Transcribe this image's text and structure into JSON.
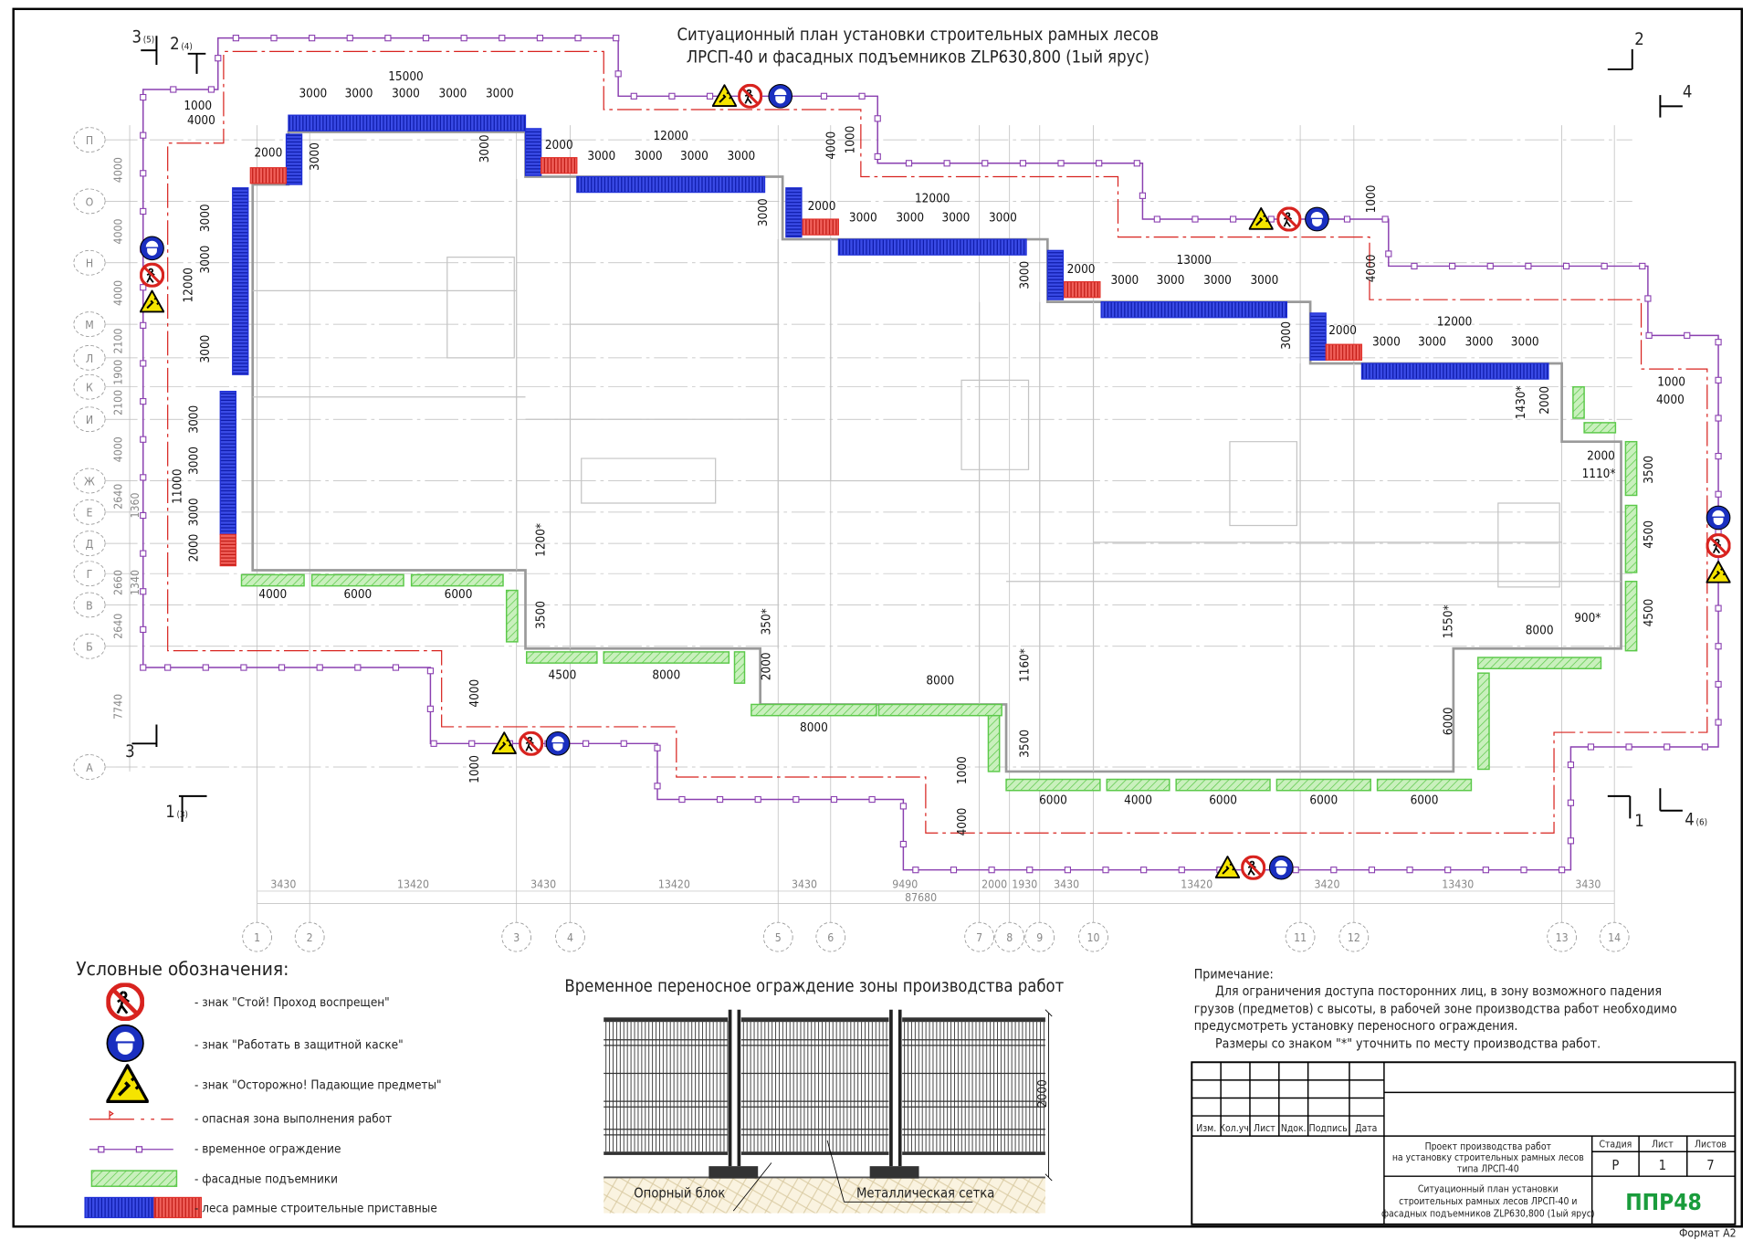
{
  "title": {
    "line1": "Ситуационный план установки строительных рамных лесов",
    "line2": "ЛРСП-40 и фасадных подъемников ZLP630,800 (1ый ярус)"
  },
  "colors": {
    "scaffold_blue": "#1f2fd6",
    "scaffold_red": "#e0302a",
    "lift_green": "#5cc94a",
    "fence_purple": "#8a3fb0",
    "danger_red": "#d8231f",
    "logo_green": "#1a9c3c"
  },
  "sections": [
    {
      "num": "3",
      "ref": "(5)"
    },
    {
      "num": "2",
      "ref": "(4)"
    },
    {
      "num": "2",
      "ref": ""
    },
    {
      "num": "4",
      "ref": ""
    },
    {
      "num": "3",
      "ref": ""
    },
    {
      "num": "1",
      "ref": "(3)"
    },
    {
      "num": "1",
      "ref": ""
    },
    {
      "num": "4",
      "ref": "(6)"
    }
  ],
  "grid": {
    "rows": [
      "П",
      "О",
      "Н",
      "М",
      "Л",
      "К",
      "И",
      "Ж",
      "Е",
      "Д",
      "Г",
      "В",
      "Б",
      "А"
    ],
    "row_dims": [
      "4000",
      "4000",
      "4000",
      "2100",
      "1900",
      "2100",
      "4000",
      "2640",
      "1360",
      "2660",
      "1340",
      "2640",
      "7740"
    ],
    "cols": [
      "1",
      "2",
      "3",
      "4",
      "5",
      "6",
      "7",
      "8",
      "9",
      "10",
      "11",
      "12",
      "13",
      "14"
    ],
    "col_dims": [
      "3430",
      "13420",
      "3430",
      "13420",
      "3430",
      "9490",
      "2000",
      "1930",
      "3430",
      "13420",
      "3420",
      "13430",
      "3430"
    ],
    "total": "87680"
  },
  "plan": {
    "dimension_labels": [
      "15000",
      "3000",
      "3000",
      "3000",
      "3000",
      "3000",
      "1000",
      "4000",
      "2000",
      "3000",
      "3000",
      "2000",
      "12000",
      "3000",
      "3000",
      "3000",
      "3000",
      "3000",
      "4000",
      "1000",
      "2000",
      "12000",
      "3000",
      "3000",
      "3000",
      "3000",
      "3000",
      "2000",
      "13000",
      "3000",
      "3000",
      "3000",
      "3000",
      "1000",
      "4000",
      "3000",
      "2000",
      "12000",
      "3000",
      "3000",
      "3000",
      "3000",
      "1430*",
      "2000",
      "1000",
      "4000",
      "2000",
      "1110*",
      "3500",
      "4500",
      "4500",
      "8000",
      "900*",
      "1550*",
      "6000",
      "3000",
      "3000",
      "12000",
      "3000",
      "3000",
      "3000",
      "11000",
      "3000",
      "2000",
      "4000",
      "6000",
      "6000",
      "1200*",
      "3500",
      "350*",
      "2000",
      "4500",
      "8000",
      "4000",
      "1000",
      "8000",
      "8000",
      "1160*",
      "3500",
      "6000",
      "4000",
      "6000",
      "6000",
      "6000",
      "4000",
      "1000"
    ]
  },
  "legend": {
    "title": "Условные обозначения:",
    "items": [
      {
        "icon": "no-entry-sign",
        "label": "- знак \"Стой! Проход воспрещен\""
      },
      {
        "icon": "hard-hat-sign",
        "label": "- знак \"Работать в защитной каске\""
      },
      {
        "icon": "falling-objects-sign",
        "label": "- знак \"Осторожно! Падающие предметы\""
      },
      {
        "icon": "danger-zone-line",
        "label": "- опасная зона выполнения работ"
      },
      {
        "icon": "temporary-fence-line",
        "label": "- временное ограждение"
      },
      {
        "icon": "facade-lift-hatch",
        "label": "- фасадные подъемники"
      },
      {
        "icon": "scaffold-hatch",
        "label": "- леса рамные строительные приставные"
      }
    ]
  },
  "fence_detail": {
    "title": "Временное переносное ограждение зоны производства работ",
    "height": "2000",
    "label_block": "Опорный блок",
    "label_mesh": "Металлическая сетка"
  },
  "notes": {
    "heading": "Примечание:",
    "lines": [
      "Для ограничения доступа посторонних лиц, в зону возможного падения",
      "грузов (предметов) с высоты, в рабочей зоне производства работ необходимо",
      "предусмотреть установку переносного ограждения.",
      "Размеры со знаком \"*\" уточнить по месту производства работ."
    ]
  },
  "title_block": {
    "col_headers": [
      "Изм.",
      "Кол.уч.",
      "Лист",
      "Nдок.",
      "Подпись",
      "Дата"
    ],
    "project": [
      "Проект производства работ",
      "на установку строительных рамных лесов",
      "типа ЛРСП-40"
    ],
    "sheet_title": [
      "Ситуационный план установки",
      "строительных рамных лесов ЛРСП-40 и",
      "фасадных подъемников ZLP630,800 (1ый ярус)"
    ],
    "stage_label": "Стадия",
    "sheet_label": "Лист",
    "sheets_label": "Листов",
    "stage": "Р",
    "sheet": "1",
    "sheets": "7",
    "logo": "ППР48",
    "format": "Формат А2"
  }
}
